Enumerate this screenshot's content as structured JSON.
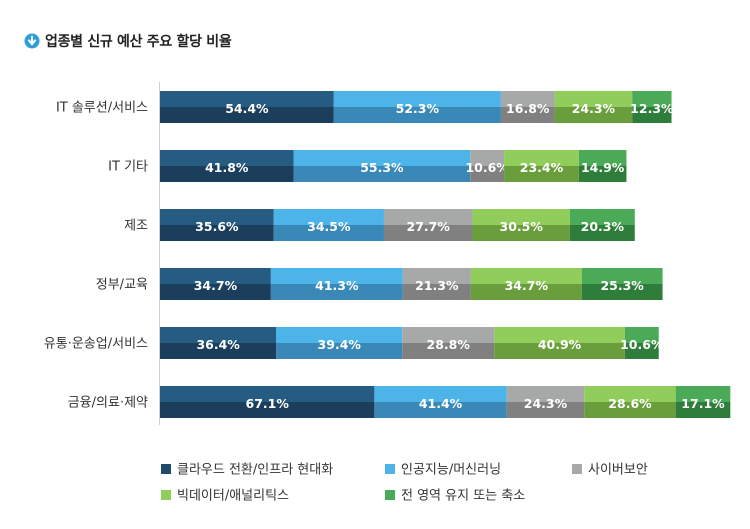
{
  "chart_data": {
    "type": "bar",
    "orientation": "horizontal",
    "stacked": true,
    "title": "업종별 신규 예산 주요 할당 비율",
    "categories": [
      "IT 솔루션/서비스",
      "IT 기타",
      "제조",
      "정부/교육",
      "유통·운송업/서비스",
      "금융/의료·제약"
    ],
    "series": [
      {
        "name": "클라우드 전환/인프라 현대화",
        "values": [
          54.4,
          41.8,
          35.6,
          34.7,
          36.4,
          67.1
        ]
      },
      {
        "name": "인공지능/머신러닝",
        "values": [
          52.3,
          55.3,
          34.5,
          41.3,
          39.4,
          41.4
        ]
      },
      {
        "name": "사이버보안",
        "values": [
          16.8,
          10.6,
          27.7,
          21.3,
          28.8,
          24.3
        ]
      },
      {
        "name": "빅데이터/애널리틱스",
        "values": [
          24.3,
          23.4,
          30.5,
          34.7,
          40.9,
          28.6
        ]
      },
      {
        "name": "전 영역 유지 또는 축소",
        "values": [
          12.3,
          14.9,
          20.3,
          25.3,
          10.6,
          17.1
        ]
      }
    ],
    "value_format": "{v}%",
    "grid": false,
    "legend_position": "bottom"
  },
  "colors": {
    "series_top": [
      "#265b82",
      "#4cb4e8",
      "#a7a9a8",
      "#91cd5a",
      "#4aaa57"
    ],
    "series_bottom": [
      "#1a3e5c",
      "#3a88b7",
      "#808080",
      "#6a9e3c",
      "#2f7d3b"
    ],
    "legend": [
      "#1f4a6b",
      "#4cb4e8",
      "#a7a9a8",
      "#91cd5a",
      "#4aaa57"
    ],
    "title_icon": "#2b9fd9"
  },
  "icons": {
    "title": "circle-down-arrow-icon"
  }
}
